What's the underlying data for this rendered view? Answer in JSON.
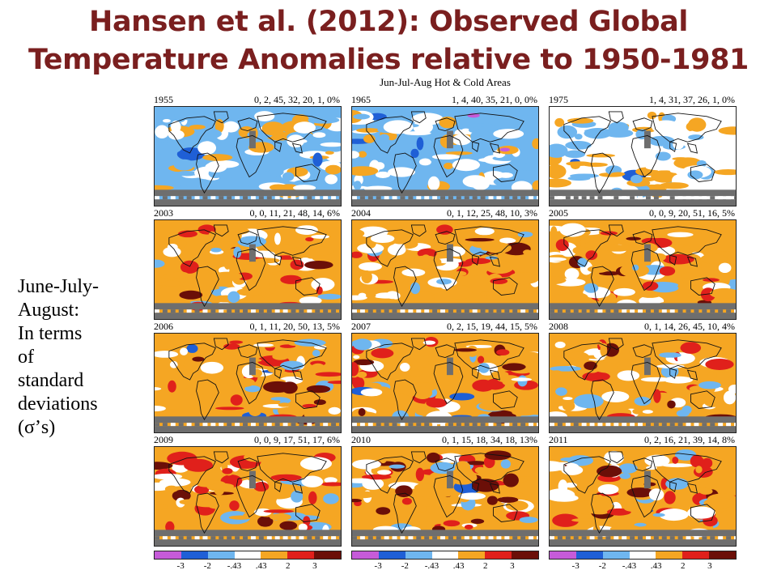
{
  "title": {
    "line1": "Hansen et al. (2012): Observed Global",
    "line2": "Temperature Anomalies relative to 1950-1981"
  },
  "subtitle": "Jun-Jul-Aug Hot & Cold Areas",
  "side_text": {
    "lines": [
      "June-July-",
      "August:",
      "In terms",
      "of",
      "standard",
      "deviations",
      "(σ’s)"
    ]
  },
  "panels": [
    {
      "year": "1955",
      "pcts": "0, 2, 45, 32, 20, 1, 0%",
      "fractions": [
        0.0,
        0.02,
        0.45,
        0.32,
        0.2,
        0.01,
        0.0
      ]
    },
    {
      "year": "1965",
      "pcts": "1, 4, 40, 35, 21, 0, 0%",
      "fractions": [
        0.01,
        0.04,
        0.4,
        0.35,
        0.21,
        0.0,
        0.0
      ]
    },
    {
      "year": "1975",
      "pcts": "1, 4, 31, 37, 26, 1, 0%",
      "fractions": [
        0.01,
        0.04,
        0.31,
        0.37,
        0.26,
        0.01,
        0.0
      ]
    },
    {
      "year": "2003",
      "pcts": "0, 0, 11, 21, 48, 14, 6%",
      "fractions": [
        0.0,
        0.0,
        0.11,
        0.21,
        0.48,
        0.14,
        0.06
      ]
    },
    {
      "year": "2004",
      "pcts": "0, 1, 12, 25, 48, 10, 3%",
      "fractions": [
        0.0,
        0.01,
        0.12,
        0.25,
        0.48,
        0.1,
        0.03
      ]
    },
    {
      "year": "2005",
      "pcts": "0, 0, 9, 20, 51, 16, 5%",
      "fractions": [
        0.0,
        0.0,
        0.09,
        0.2,
        0.51,
        0.16,
        0.05
      ]
    },
    {
      "year": "2006",
      "pcts": "0, 1, 11, 20, 50, 13, 5%",
      "fractions": [
        0.0,
        0.01,
        0.11,
        0.2,
        0.5,
        0.13,
        0.05
      ]
    },
    {
      "year": "2007",
      "pcts": "0, 2, 15, 19, 44, 15, 5%",
      "fractions": [
        0.0,
        0.02,
        0.15,
        0.19,
        0.44,
        0.15,
        0.05
      ]
    },
    {
      "year": "2008",
      "pcts": "0, 1, 14, 26, 45, 10, 4%",
      "fractions": [
        0.0,
        0.01,
        0.14,
        0.26,
        0.45,
        0.1,
        0.04
      ]
    },
    {
      "year": "2009",
      "pcts": "0, 0, 9, 17, 51, 17, 6%",
      "fractions": [
        0.0,
        0.0,
        0.09,
        0.17,
        0.51,
        0.17,
        0.06
      ]
    },
    {
      "year": "2010",
      "pcts": "0, 1, 15, 18, 34, 18, 13%",
      "fractions": [
        0.0,
        0.01,
        0.15,
        0.18,
        0.34,
        0.18,
        0.13
      ]
    },
    {
      "year": "2011",
      "pcts": "0, 2, 16, 21, 39, 14, 8%",
      "fractions": [
        0.0,
        0.02,
        0.16,
        0.21,
        0.39,
        0.14,
        0.08
      ]
    }
  ],
  "legend": {
    "colors": [
      "#c65bd9",
      "#1f5fd6",
      "#6fb6ef",
      "#ffffff",
      "#f5a623",
      "#e0201b",
      "#6b0f08"
    ],
    "tick_labels": [
      "-3",
      "-2",
      "-.43",
      ".43",
      "2",
      "3"
    ]
  },
  "map_colors": {
    "extreme_cold": "#c65bd9",
    "very_cold": "#1f5fd6",
    "cold": "#6fb6ef",
    "neutral": "#ffffff",
    "warm": "#f5a623",
    "hot": "#e0201b",
    "extreme_hot": "#6b0f08",
    "no_data": "#6e6e6e"
  }
}
